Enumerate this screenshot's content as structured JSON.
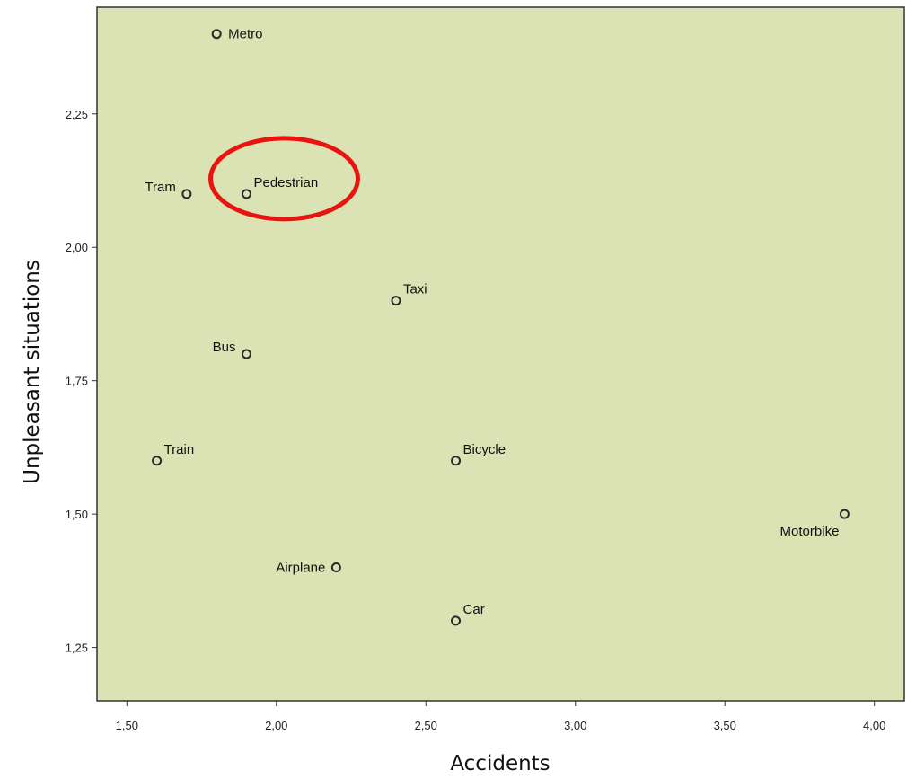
{
  "chart_data": {
    "type": "scatter",
    "xlabel": "Accidents",
    "ylabel": "Unpleasant situations",
    "xlim": [
      1.4,
      4.1
    ],
    "ylim": [
      1.15,
      2.45
    ],
    "x_ticks": [
      1.5,
      2.0,
      2.5,
      3.0,
      3.5,
      4.0
    ],
    "y_ticks": [
      1.25,
      1.5,
      1.75,
      2.0,
      2.25
    ],
    "x_tick_labels": [
      "1,50",
      "2,00",
      "2,50",
      "3,00",
      "3,50",
      "4,00"
    ],
    "y_tick_labels": [
      "1,25",
      "1,50",
      "1,75",
      "2,00",
      "2,25"
    ],
    "grid": false,
    "points": [
      {
        "label": "Metro",
        "x": 1.8,
        "y": 2.4,
        "label_pos": "right"
      },
      {
        "label": "Tram",
        "x": 1.7,
        "y": 2.1,
        "label_pos": "upper-left"
      },
      {
        "label": "Pedestrian",
        "x": 1.9,
        "y": 2.1,
        "label_pos": "upper-right"
      },
      {
        "label": "Taxi",
        "x": 2.4,
        "y": 1.9,
        "label_pos": "upper-right"
      },
      {
        "label": "Bus",
        "x": 1.9,
        "y": 1.8,
        "label_pos": "upper-left"
      },
      {
        "label": "Train",
        "x": 1.6,
        "y": 1.6,
        "label_pos": "upper-right"
      },
      {
        "label": "Bicycle",
        "x": 2.6,
        "y": 1.6,
        "label_pos": "upper-right"
      },
      {
        "label": "Motorbike",
        "x": 3.9,
        "y": 1.5,
        "label_pos": "lower-left"
      },
      {
        "label": "Airplane",
        "x": 2.2,
        "y": 1.4,
        "label_pos": "left"
      },
      {
        "label": "Car",
        "x": 2.6,
        "y": 1.3,
        "label_pos": "upper-right"
      }
    ],
    "highlight": {
      "target": "Pedestrian",
      "shape": "ellipse",
      "color": "#e8140f"
    },
    "colors": {
      "plot_background": "#dbe3b4",
      "marker": "#2a2a2a",
      "frame": "#333333"
    }
  }
}
